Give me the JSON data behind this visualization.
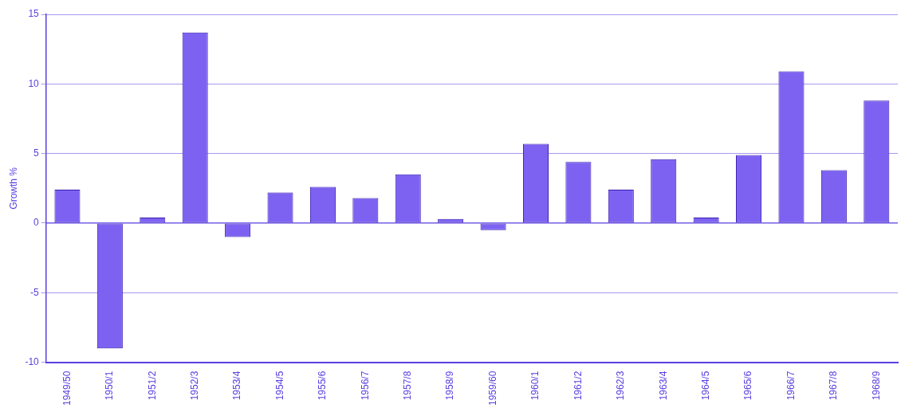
{
  "chart_data": {
    "type": "bar",
    "ylabel": "Growth %",
    "categories": [
      "1949/50",
      "1950/1",
      "1951/2",
      "1952/3",
      "1953/4",
      "1954/5",
      "1955/6",
      "1956/7",
      "1957/8",
      "1958/9",
      "1959/60",
      "1960/1",
      "1961/2",
      "1962/3",
      "1963/4",
      "1964/5",
      "1965/6",
      "1966/7",
      "1967/8",
      "1968/9"
    ],
    "values": [
      2.4,
      -9.0,
      0.4,
      13.7,
      -1.0,
      2.2,
      2.6,
      1.8,
      3.5,
      0.3,
      -0.5,
      5.7,
      4.4,
      2.4,
      4.6,
      0.4,
      4.9,
      10.9,
      3.8,
      8.8
    ],
    "color": "#7d62f2",
    "ref_lines": [
      {
        "axis": "y",
        "value": 0,
        "color": "#5a3fe0"
      }
    ],
    "ylim": [
      -10,
      15
    ],
    "yticks": [
      -10,
      -5,
      0,
      5,
      10,
      15
    ],
    "grid": "y",
    "legend": false
  }
}
